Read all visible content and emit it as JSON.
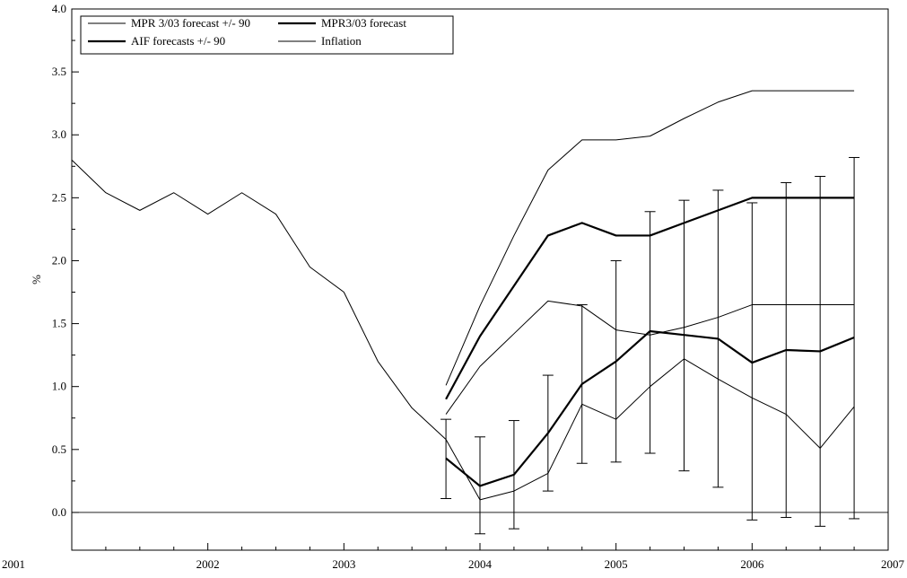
{
  "chart_data": {
    "type": "line",
    "title": "",
    "xlabel": "",
    "ylabel": "%",
    "xlim": [
      2001,
      2007
    ],
    "ylim": [
      -0.3,
      4.0
    ],
    "x_ticks": [
      "2001",
      "2002",
      "2003",
      "2004",
      "2005",
      "2006",
      "2007"
    ],
    "y_ticks": [
      "0.0",
      "0.5",
      "1.0",
      "1.5",
      "2.0",
      "2.5",
      "3.0",
      "3.5",
      "4.0"
    ],
    "grid": false,
    "reference_line": 0,
    "legend": {
      "placement": "top-left",
      "entries": [
        {
          "name": "MPR 3/03 forecast +/- 90",
          "weight": "thin"
        },
        {
          "name": "MPR3/03 forecast",
          "weight": "thick"
        },
        {
          "name": "AIF forecasts +/- 90",
          "weight": "thick"
        },
        {
          "name": "Inflation",
          "weight": "thin"
        }
      ]
    },
    "series": [
      {
        "name": "Inflation",
        "weight": "thin",
        "x": [
          2001.0,
          2001.25,
          2001.5,
          2001.75,
          2002.0,
          2002.25,
          2002.5,
          2002.75,
          2003.0,
          2003.25,
          2003.5,
          2003.75,
          2004.0,
          2004.25,
          2004.5,
          2004.75,
          2005.0,
          2005.25,
          2005.5,
          2005.75,
          2006.0,
          2006.25,
          2006.5,
          2006.75
        ],
        "values": [
          2.8,
          2.54,
          2.4,
          2.54,
          2.37,
          2.54,
          2.37,
          1.95,
          1.75,
          1.2,
          0.83,
          0.58,
          0.1,
          0.17,
          0.31,
          0.86,
          0.74,
          1.0,
          1.22,
          1.06,
          0.91,
          0.78,
          0.51,
          0.84
        ]
      },
      {
        "name": "MPR3/03 forecast",
        "weight": "thick",
        "x": [
          2003.75,
          2004.0,
          2004.25,
          2004.5,
          2004.75,
          2005.0,
          2005.25,
          2005.5,
          2005.75,
          2006.0,
          2006.25,
          2006.5,
          2006.75
        ],
        "values": [
          0.9,
          1.4,
          1.8,
          2.2,
          2.3,
          2.2,
          2.2,
          2.3,
          2.4,
          2.5,
          2.5,
          2.5,
          2.5
        ]
      },
      {
        "name": "MPR 3/03 forecast +/- 90 (upper)",
        "weight": "thin",
        "x": [
          2003.75,
          2004.0,
          2004.25,
          2004.5,
          2004.75,
          2005.0,
          2005.25,
          2005.5,
          2005.75,
          2006.0,
          2006.25,
          2006.5,
          2006.75
        ],
        "values": [
          1.01,
          1.64,
          2.2,
          2.72,
          2.96,
          2.96,
          2.99,
          3.13,
          3.26,
          3.35,
          3.35,
          3.35,
          3.35
        ]
      },
      {
        "name": "MPR 3/03 forecast +/- 90 (lower)",
        "weight": "thin",
        "x": [
          2003.75,
          2004.0,
          2004.25,
          2004.5,
          2004.75,
          2005.0,
          2005.25,
          2005.5,
          2005.75,
          2006.0,
          2006.25,
          2006.5,
          2006.75
        ],
        "values": [
          0.78,
          1.16,
          1.42,
          1.68,
          1.64,
          1.45,
          1.41,
          1.47,
          1.55,
          1.65,
          1.65,
          1.65,
          1.65
        ]
      },
      {
        "name": "AIF forecasts",
        "weight": "thick",
        "x": [
          2003.75,
          2004.0,
          2004.25,
          2004.5,
          2004.75,
          2005.0,
          2005.25,
          2005.5,
          2005.75,
          2006.0,
          2006.25,
          2006.5,
          2006.75
        ],
        "values": [
          0.43,
          0.21,
          0.3,
          0.63,
          1.02,
          1.2,
          1.44,
          1.41,
          1.38,
          1.19,
          1.29,
          1.28,
          1.39
        ]
      }
    ],
    "error_bars": {
      "name": "AIF forecasts +/- 90",
      "x": [
        2003.75,
        2004.0,
        2004.25,
        2004.5,
        2004.75,
        2005.0,
        2005.25,
        2005.5,
        2005.75,
        2006.0,
        2006.25,
        2006.5,
        2006.75
      ],
      "low": [
        0.11,
        -0.17,
        -0.13,
        0.17,
        0.39,
        0.4,
        0.47,
        0.33,
        0.2,
        -0.06,
        -0.04,
        -0.11,
        -0.05
      ],
      "high": [
        0.74,
        0.6,
        0.73,
        1.09,
        1.65,
        2.0,
        2.39,
        2.48,
        2.56,
        2.46,
        2.62,
        2.67,
        2.82
      ]
    }
  }
}
